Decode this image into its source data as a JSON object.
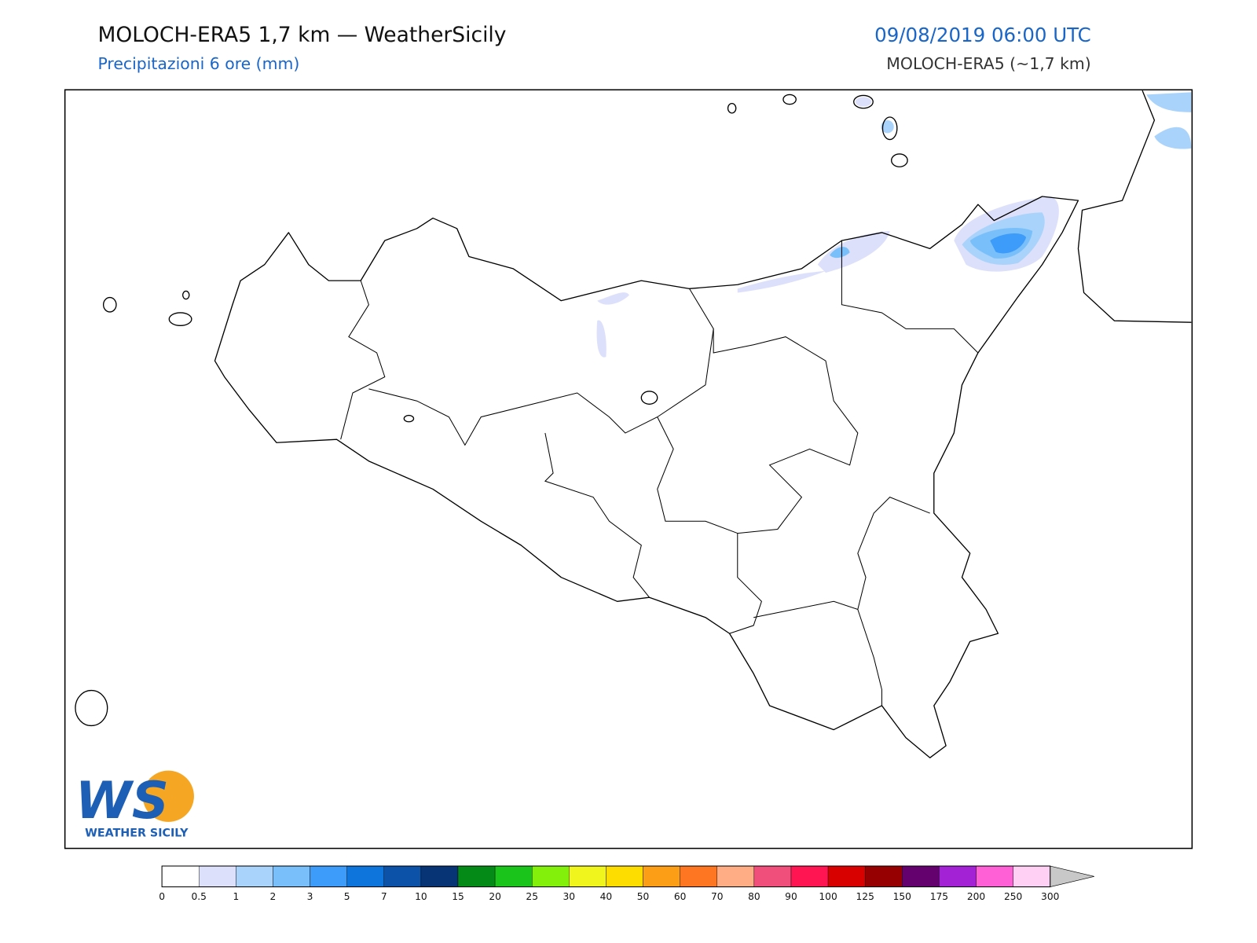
{
  "header": {
    "title": "MOLOCH-ERA5 1,7 km — WeatherSicily",
    "subtitle": "Precipitazioni 6 ore (mm)",
    "datetime": "09/08/2019 06:00 UTC",
    "model": "MOLOCH-ERA5 (~1,7 km)"
  },
  "logo": {
    "mark": "WS",
    "text": "WEATHER SICILY"
  },
  "colorbar": {
    "bounds": [
      0,
      0.5,
      1,
      2,
      3,
      5,
      7,
      10,
      15,
      20,
      25,
      30,
      40,
      50,
      60,
      70,
      80,
      90,
      100,
      125,
      150,
      175,
      200,
      250,
      300
    ],
    "colors": [
      "#ffffff",
      "#dde0fa",
      "#a9d3fb",
      "#79c0fb",
      "#3d9bf9",
      "#0e75dc",
      "#0b52a8",
      "#073474",
      "#048a16",
      "#1bc41b",
      "#82f00b",
      "#f0f51e",
      "#fddc00",
      "#fd9e17",
      "#fe7621",
      "#fead85",
      "#f04f7c",
      "#ff1552",
      "#d90000",
      "#960000",
      "#65006f",
      "#a322d6",
      "#ff60d6",
      "#ffd0f3"
    ],
    "extend_color": "#c8c8c8"
  }
}
